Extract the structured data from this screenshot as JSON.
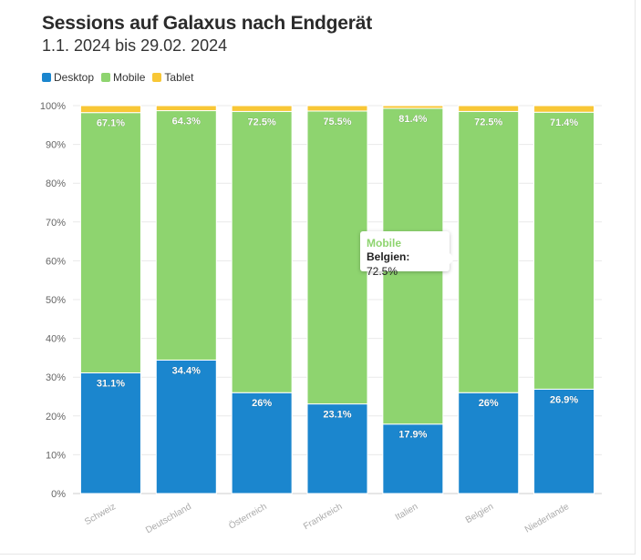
{
  "title": "Sessions auf Galaxus nach Endgerät",
  "subtitle": "1.1. 2024 bis 29.02. 2024",
  "legend": [
    {
      "label": "Desktop",
      "color": "#1b86ce"
    },
    {
      "label": "Mobile",
      "color": "#8ed46f"
    },
    {
      "label": "Tablet",
      "color": "#f8c736"
    }
  ],
  "tooltip": {
    "series": "Mobile",
    "category": "Belgien:",
    "value": "72.5%"
  },
  "chart_data": {
    "type": "bar",
    "stacked": true,
    "categories": [
      "Schweiz",
      "Deutschland",
      "Österreich",
      "Frankreich",
      "Italien",
      "Belgien",
      "Niederlande"
    ],
    "series": [
      {
        "name": "Desktop",
        "color": "#1b86ce",
        "values": [
          31.1,
          34.4,
          26,
          23.1,
          17.9,
          26,
          26.9
        ],
        "labels": [
          "31.1%",
          "34.4%",
          "26%",
          "23.1%",
          "17.9%",
          "26%",
          "26.9%"
        ]
      },
      {
        "name": "Mobile",
        "color": "#8ed46f",
        "values": [
          67.1,
          64.3,
          72.5,
          75.5,
          81.4,
          72.5,
          71.4
        ],
        "labels": [
          "67.1%",
          "64.3%",
          "72.5%",
          "75.5%",
          "81.4%",
          "72.5%",
          "71.4%"
        ]
      },
      {
        "name": "Tablet",
        "color": "#f8c736",
        "values": [
          1.8,
          1.3,
          1.5,
          1.4,
          0.7,
          1.5,
          1.7
        ]
      }
    ],
    "ylim": [
      0,
      100
    ],
    "yticks": [
      "0%",
      "10%",
      "20%",
      "30%",
      "40%",
      "50%",
      "60%",
      "70%",
      "80%",
      "90%",
      "100%"
    ],
    "grid": true,
    "legend_position": "top-left"
  }
}
